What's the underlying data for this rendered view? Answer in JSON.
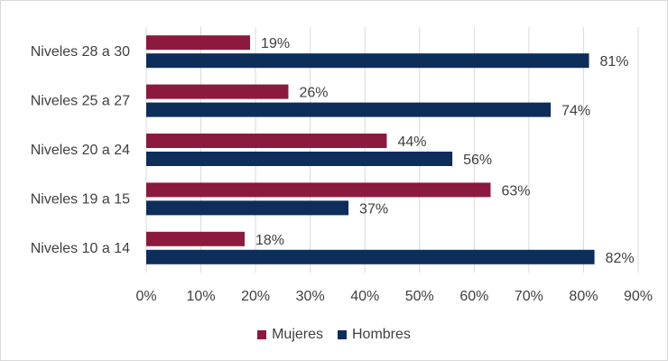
{
  "chart_data": {
    "type": "bar",
    "orientation": "horizontal",
    "categories": [
      "Niveles 28 a 30",
      "Niveles 25 a 27",
      "Niveles 20 a 24",
      "Niveles 19 a 15",
      "Niveles 10 a 14"
    ],
    "series": [
      {
        "name": "Mujeres",
        "values": [
          19,
          26,
          44,
          63,
          18
        ],
        "color": "#8b1a3e"
      },
      {
        "name": "Hombres",
        "values": [
          81,
          74,
          56,
          37,
          82
        ],
        "color": "#0d2d5a"
      }
    ],
    "xlim": [
      0,
      90
    ],
    "xticks": [
      0,
      10,
      20,
      30,
      40,
      50,
      60,
      70,
      80,
      90
    ],
    "xtick_labels": [
      "0%",
      "10%",
      "20%",
      "30%",
      "40%",
      "50%",
      "60%",
      "70%",
      "80%",
      "90%"
    ],
    "value_suffix": "%",
    "grid": "vertical",
    "legend": "bottom-center"
  }
}
